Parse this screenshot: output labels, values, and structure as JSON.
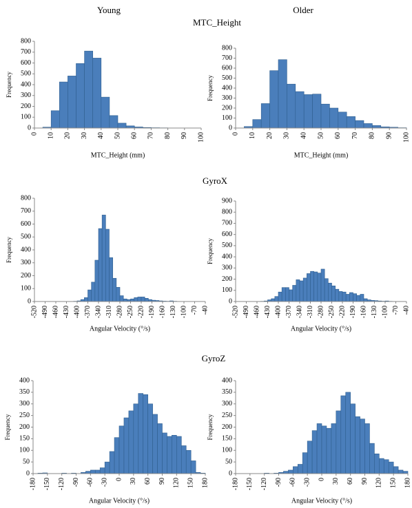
{
  "column_titles": [
    "Young",
    "Older"
  ],
  "row_titles": [
    "MTC_Height",
    "GyroX",
    "GyroZ"
  ],
  "chart_data": [
    {
      "type": "histogram",
      "x_label": "MTC_Height (mm)",
      "y_label": "Frequency",
      "color": "#4a7ebb",
      "bins": [
        0,
        5,
        10,
        15,
        20,
        25,
        30,
        35,
        40,
        45,
        50,
        55,
        60,
        65,
        70,
        75,
        80,
        85,
        90,
        95,
        100
      ],
      "values": [
        0,
        8,
        160,
        425,
        480,
        595,
        710,
        645,
        285,
        115,
        45,
        20,
        10,
        5,
        3,
        2,
        0,
        0,
        0,
        0
      ],
      "xlim": [
        0,
        100
      ],
      "xticks": [
        0,
        10,
        20,
        30,
        40,
        50,
        60,
        70,
        80,
        90,
        100
      ],
      "ylim": [
        0,
        800
      ],
      "yticks": [
        0,
        100,
        200,
        300,
        400,
        500,
        600,
        700,
        800
      ]
    },
    {
      "type": "histogram",
      "x_label": "MTC_Height (mm)",
      "y_label": "Frequency",
      "color": "#4a7ebb",
      "bins": [
        0,
        5,
        10,
        15,
        20,
        25,
        30,
        35,
        40,
        45,
        50,
        55,
        60,
        65,
        70,
        75,
        80,
        85,
        90,
        95,
        100
      ],
      "values": [
        0,
        15,
        85,
        245,
        575,
        685,
        440,
        365,
        335,
        340,
        240,
        200,
        160,
        115,
        75,
        45,
        25,
        12,
        8,
        3
      ],
      "xlim": [
        0,
        100
      ],
      "xticks": [
        0,
        10,
        20,
        30,
        40,
        50,
        60,
        70,
        80,
        90,
        100
      ],
      "ylim": [
        0,
        800
      ],
      "yticks": [
        0,
        100,
        200,
        300,
        400,
        500,
        600,
        700,
        800
      ]
    },
    {
      "type": "histogram",
      "x_label": "Angular Velocity (°/s)",
      "y_label": "Frequency",
      "color": "#4a7ebb",
      "bins": [
        -520,
        -510,
        -500,
        -490,
        -480,
        -470,
        -460,
        -450,
        -440,
        -430,
        -420,
        -410,
        -400,
        -390,
        -380,
        -370,
        -360,
        -350,
        -340,
        -330,
        -320,
        -310,
        -300,
        -290,
        -280,
        -270,
        -260,
        -250,
        -240,
        -230,
        -220,
        -210,
        -200,
        -190,
        -180,
        -170,
        -160,
        -150,
        -140,
        -130,
        -120,
        -110,
        -100,
        -90,
        -80,
        -70,
        -60,
        -50,
        -40
      ],
      "values": [
        0,
        0,
        0,
        0,
        0,
        0,
        0,
        0,
        0,
        0,
        0,
        2,
        5,
        15,
        30,
        90,
        150,
        320,
        565,
        670,
        560,
        340,
        180,
        110,
        45,
        20,
        15,
        20,
        30,
        35,
        35,
        25,
        15,
        10,
        8,
        5,
        3,
        2,
        5,
        2,
        1,
        0,
        0,
        0,
        0,
        0,
        0,
        0
      ],
      "xlim": [
        -520,
        -40
      ],
      "xticks": [
        -520,
        -490,
        -460,
        -430,
        -400,
        -370,
        -340,
        -310,
        -280,
        -250,
        -220,
        -190,
        -160,
        -130,
        -100,
        -70,
        -40
      ],
      "ylim": [
        0,
        800
      ],
      "yticks": [
        0,
        100,
        200,
        300,
        400,
        500,
        600,
        700,
        800
      ]
    },
    {
      "type": "histogram",
      "x_label": "Angular Velocity (°/s)",
      "y_label": "Frequency",
      "color": "#4a7ebb",
      "bins": [
        -520,
        -510,
        -500,
        -490,
        -480,
        -470,
        -460,
        -450,
        -440,
        -430,
        -420,
        -410,
        -400,
        -390,
        -380,
        -370,
        -360,
        -350,
        -340,
        -330,
        -320,
        -310,
        -300,
        -290,
        -280,
        -270,
        -260,
        -250,
        -240,
        -230,
        -220,
        -210,
        -200,
        -190,
        -180,
        -170,
        -160,
        -150,
        -140,
        -130,
        -120,
        -110,
        -100,
        -90,
        -80,
        -70,
        -60,
        -50,
        -40
      ],
      "values": [
        0,
        0,
        0,
        0,
        0,
        0,
        0,
        2,
        5,
        15,
        25,
        45,
        85,
        125,
        125,
        105,
        145,
        195,
        185,
        210,
        250,
        270,
        265,
        255,
        290,
        205,
        165,
        140,
        110,
        90,
        85,
        65,
        80,
        70,
        55,
        65,
        25,
        15,
        10,
        8,
        5,
        3,
        5,
        2,
        1,
        0,
        0,
        0
      ],
      "xlim": [
        -520,
        -40
      ],
      "xticks": [
        -520,
        -490,
        -460,
        -430,
        -400,
        -370,
        -340,
        -310,
        -280,
        -250,
        -220,
        -190,
        -160,
        -130,
        -100,
        -70,
        -40
      ],
      "ylim": [
        0,
        900
      ],
      "yticks": [
        0,
        100,
        200,
        300,
        400,
        500,
        600,
        700,
        800,
        900
      ]
    },
    {
      "type": "histogram",
      "x_label": "Angular Velocity (°/s)",
      "y_label": "Frequency",
      "color": "#4a7ebb",
      "bins": [
        -180,
        -170,
        -160,
        -150,
        -140,
        -130,
        -120,
        -110,
        -100,
        -90,
        -80,
        -70,
        -60,
        -50,
        -40,
        -30,
        -20,
        -10,
        0,
        10,
        20,
        30,
        40,
        50,
        60,
        70,
        80,
        90,
        100,
        110,
        120,
        130,
        140,
        150,
        160,
        170,
        180
      ],
      "values": [
        0,
        2,
        3,
        0,
        0,
        0,
        2,
        0,
        2,
        0,
        5,
        10,
        15,
        15,
        25,
        50,
        95,
        155,
        205,
        240,
        270,
        300,
        345,
        340,
        300,
        255,
        215,
        175,
        160,
        165,
        160,
        120,
        100,
        55,
        5,
        2
      ],
      "xlim": [
        -180,
        180
      ],
      "xticks": [
        -180,
        -150,
        -120,
        -90,
        -60,
        -30,
        0,
        30,
        60,
        90,
        120,
        150,
        180
      ],
      "ylim": [
        0,
        400
      ],
      "yticks": [
        0,
        50,
        100,
        150,
        200,
        250,
        300,
        350,
        400
      ]
    },
    {
      "type": "histogram",
      "x_label": "Angular Velocity (°/s)",
      "y_label": "Frequency",
      "color": "#4a7ebb",
      "bins": [
        -180,
        -170,
        -160,
        -150,
        -140,
        -130,
        -120,
        -110,
        -100,
        -90,
        -80,
        -70,
        -60,
        -50,
        -40,
        -30,
        -20,
        -10,
        0,
        10,
        20,
        30,
        40,
        50,
        60,
        70,
        80,
        90,
        100,
        110,
        120,
        130,
        140,
        150,
        160,
        170,
        180
      ],
      "values": [
        0,
        0,
        0,
        0,
        0,
        0,
        2,
        0,
        2,
        5,
        10,
        15,
        30,
        40,
        90,
        140,
        185,
        215,
        205,
        195,
        215,
        270,
        335,
        350,
        300,
        245,
        235,
        215,
        130,
        85,
        65,
        60,
        50,
        30,
        15,
        10
      ],
      "xlim": [
        -180,
        180
      ],
      "xticks": [
        -180,
        -150,
        -120,
        -90,
        -60,
        -30,
        0,
        30,
        60,
        90,
        120,
        150,
        180
      ],
      "ylim": [
        0,
        400
      ],
      "yticks": [
        0,
        50,
        100,
        150,
        200,
        250,
        300,
        350,
        400
      ]
    }
  ]
}
